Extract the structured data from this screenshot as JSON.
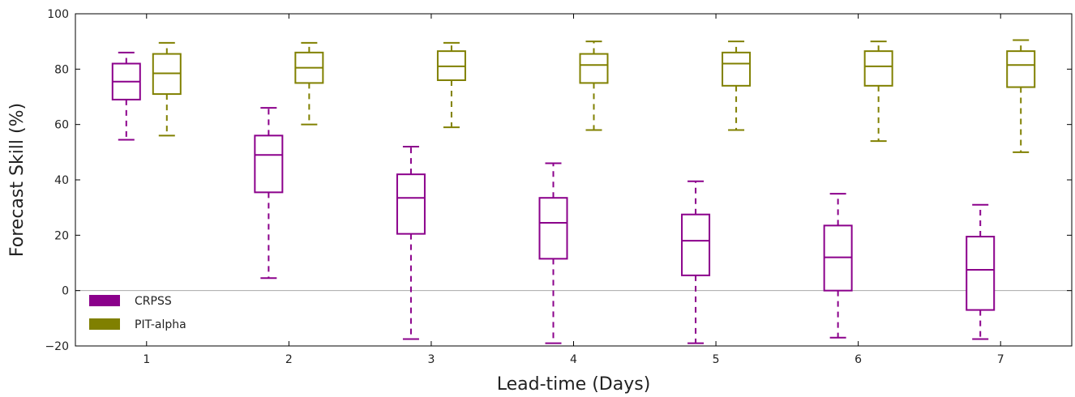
{
  "chart_data": {
    "type": "box",
    "xlabel": "Lead-time (Days)",
    "ylabel": "Forecast Skill (%)",
    "categories": [
      "1",
      "2",
      "3",
      "4",
      "5",
      "6",
      "7"
    ],
    "ylim": [
      -20,
      100
    ],
    "yticks": [
      "100",
      "80",
      "60",
      "40",
      "20",
      "0",
      "−20"
    ],
    "zero_line": true,
    "legend_position": "lower-left",
    "series": [
      {
        "name": "CRPSS",
        "color": "#8b008b",
        "boxes": [
          {
            "whislo": 54.5,
            "q1": 69,
            "med": 75.5,
            "q3": 82,
            "whishi": 86
          },
          {
            "whislo": 4.5,
            "q1": 35.5,
            "med": 49,
            "q3": 56,
            "whishi": 66
          },
          {
            "whislo": -17.5,
            "q1": 20.5,
            "med": 33.5,
            "q3": 42,
            "whishi": 52
          },
          {
            "whislo": -19,
            "q1": 11.5,
            "med": 24.5,
            "q3": 33.5,
            "whishi": 46
          },
          {
            "whislo": -19,
            "q1": 5.5,
            "med": 18,
            "q3": 27.5,
            "whishi": 39.5
          },
          {
            "whislo": -17,
            "q1": 0,
            "med": 12,
            "q3": 23.5,
            "whishi": 35
          },
          {
            "whislo": -17.5,
            "q1": -7,
            "med": 7.5,
            "q3": 19.5,
            "whishi": 31
          }
        ]
      },
      {
        "name": "PIT-alpha",
        "color": "#808000",
        "boxes": [
          {
            "whislo": 56,
            "q1": 71,
            "med": 78.5,
            "q3": 85.5,
            "whishi": 89.5
          },
          {
            "whislo": 60,
            "q1": 75,
            "med": 80.5,
            "q3": 86,
            "whishi": 89.5
          },
          {
            "whislo": 59,
            "q1": 76,
            "med": 81,
            "q3": 86.5,
            "whishi": 89.5
          },
          {
            "whislo": 58,
            "q1": 75,
            "med": 81.5,
            "q3": 85.5,
            "whishi": 90
          },
          {
            "whislo": 58,
            "q1": 74,
            "med": 82,
            "q3": 86,
            "whishi": 90
          },
          {
            "whislo": 54,
            "q1": 74,
            "med": 81,
            "q3": 86.5,
            "whishi": 90
          },
          {
            "whislo": 50,
            "q1": 73.5,
            "med": 81.5,
            "q3": 86.5,
            "whishi": 90.5
          }
        ]
      }
    ]
  }
}
